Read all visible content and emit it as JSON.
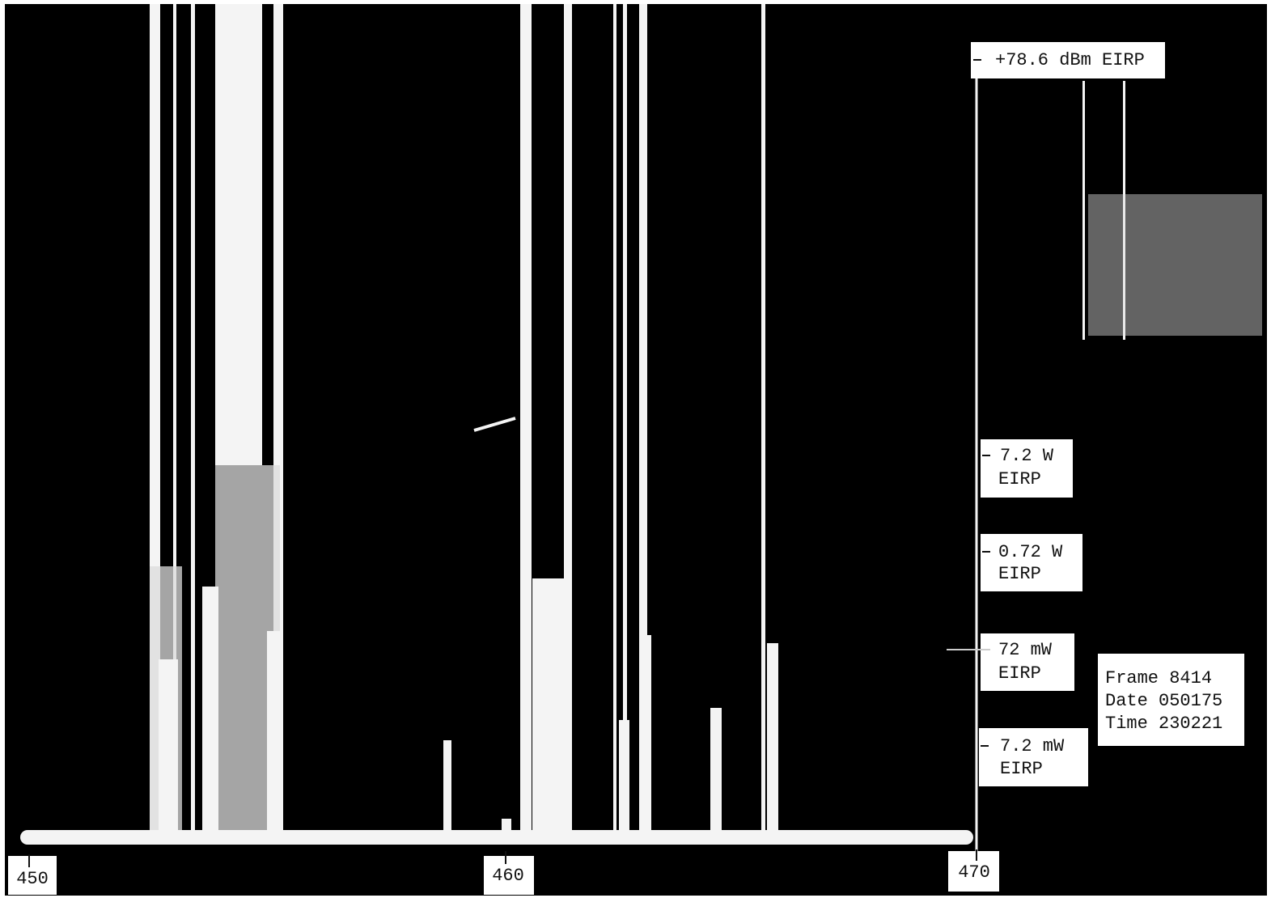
{
  "axis": {
    "ticks": [
      "450",
      "460",
      "470"
    ]
  },
  "levels": [
    {
      "lines": [
        "+78.6 dBm EIRP"
      ]
    },
    {
      "lines": [
        "7.2 W",
        "EIRP"
      ]
    },
    {
      "lines": [
        "0.72 W",
        "EIRP"
      ]
    },
    {
      "lines": [
        "72 mW",
        "EIRP"
      ]
    },
    {
      "lines": [
        "7.2 mW",
        "EIRP"
      ]
    }
  ],
  "info": [
    "Frame 8414",
    "Date 050175",
    "Time 230221"
  ]
}
